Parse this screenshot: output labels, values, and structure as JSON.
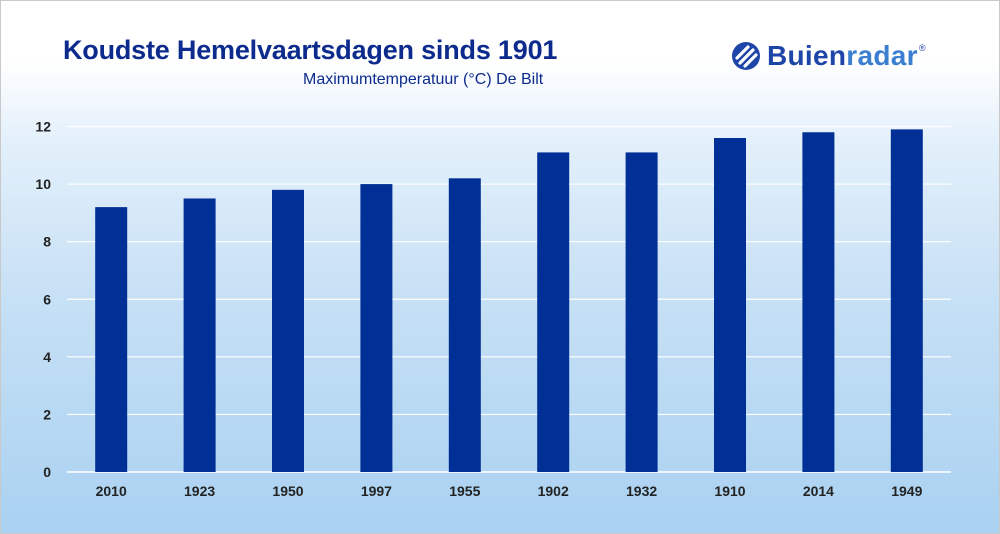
{
  "header": {
    "title": "Koudste Hemelvaartsdagen sinds 1901",
    "subtitle": "Maximumtemperatuur (°C) De Bilt"
  },
  "brand": {
    "name_part1": "Buien",
    "name_part2": "radar",
    "registered_mark": "®",
    "icon": "buienradar-logo-icon"
  },
  "colors": {
    "bar": "#002f96",
    "title": "#0d2b8c",
    "grid": "#ffffff"
  },
  "chart_data": {
    "type": "bar",
    "categories": [
      "2010",
      "1923",
      "1950",
      "1997",
      "1955",
      "1902",
      "1932",
      "1910",
      "2014",
      "1949"
    ],
    "values": [
      9.2,
      9.5,
      9.8,
      10.0,
      10.2,
      11.1,
      11.1,
      11.6,
      11.8,
      11.9
    ],
    "title": "Koudste Hemelvaartsdagen sinds 1901",
    "subtitle": "Maximumtemperatuur (°C) De Bilt",
    "xlabel": "",
    "ylabel": "",
    "ylim": [
      0,
      12
    ],
    "yticks": [
      0,
      2,
      4,
      6,
      8,
      10,
      12
    ],
    "grid": true,
    "legend": "none"
  }
}
